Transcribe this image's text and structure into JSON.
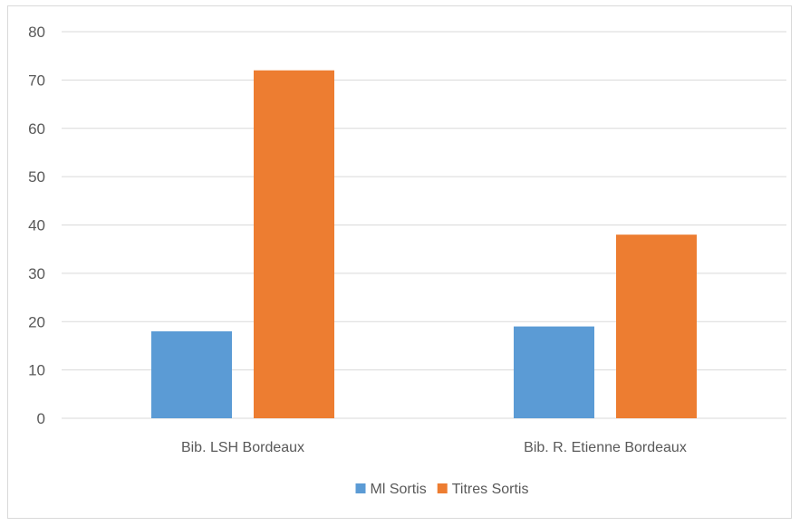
{
  "chart_data": {
    "type": "bar",
    "categories": [
      "Bib. LSH Bordeaux",
      "Bib. R. Etienne Bordeaux"
    ],
    "series": [
      {
        "name": "Ml Sortis",
        "values": [
          18,
          19
        ],
        "color": "#5b9bd5"
      },
      {
        "name": "Titres Sortis",
        "values": [
          72,
          38
        ],
        "color": "#ed7d31"
      }
    ],
    "title": "",
    "xlabel": "",
    "ylabel": "",
    "ylim": [
      0,
      80
    ],
    "yticks": [
      0,
      10,
      20,
      30,
      40,
      50,
      60,
      70,
      80
    ],
    "grid": true,
    "gridColor": "#d9d9d9",
    "legend": "bottom"
  }
}
